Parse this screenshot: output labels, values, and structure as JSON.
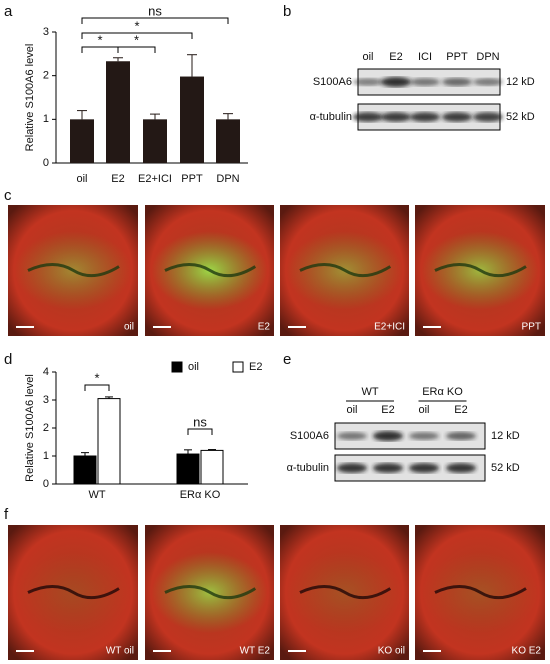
{
  "panel_letters": [
    "a",
    "b",
    "c",
    "d",
    "e",
    "f"
  ],
  "chart_data": [
    {
      "type": "bar",
      "ylabel": "Relative S100A6 level",
      "categories": [
        "oil",
        "E2",
        "E2+ICI",
        "PPT",
        "DPN"
      ],
      "values": [
        1.0,
        2.33,
        1.0,
        1.98,
        1.0
      ],
      "errors": [
        0.2,
        0.08,
        0.12,
        0.5,
        0.13
      ],
      "color": "#231815",
      "ylim": [
        0,
        3
      ],
      "yticks": [
        0,
        1,
        2,
        3
      ],
      "annotations": [
        "ns",
        "*",
        "*",
        "*"
      ]
    },
    {
      "type": "grouped_bar",
      "ylabel": "Relative S100A6 level",
      "categories": [
        "WT",
        "ERα KO"
      ],
      "series": [
        {
          "name": "oil",
          "color": "#000000",
          "values": [
            1.0,
            1.07
          ],
          "errors": [
            0.12,
            0.15
          ]
        },
        {
          "name": "E2",
          "color": "#ffffff",
          "values": [
            3.05,
            1.2
          ],
          "errors": [
            0.06,
            0.03
          ]
        }
      ],
      "ylim": [
        0,
        4
      ],
      "yticks": [
        0,
        1,
        2,
        3,
        4
      ],
      "annotations": [
        "*",
        "ns"
      ]
    }
  ],
  "blot_b": {
    "lanes": [
      "oil",
      "E2",
      "ICI",
      "PPT",
      "DPN"
    ],
    "rows": [
      {
        "name": "S100A6",
        "size": "12 kD"
      },
      {
        "name": "α-tubulin",
        "size": "52 kD"
      }
    ]
  },
  "blot_e": {
    "groups": [
      {
        "name": "WT",
        "lanes": [
          "oil",
          "E2"
        ]
      },
      {
        "name": "ERα KO",
        "lanes": [
          "oil",
          "E2"
        ]
      }
    ],
    "rows": [
      {
        "name": "S100A6",
        "size": "12 kD"
      },
      {
        "name": "α-tubulin",
        "size": "52 kD"
      }
    ]
  },
  "images_c": [
    "oil",
    "E2",
    "E2+ICI",
    "PPT"
  ],
  "images_f": [
    "WT oil",
    "WT E2",
    "KO oil",
    "KO E2"
  ]
}
